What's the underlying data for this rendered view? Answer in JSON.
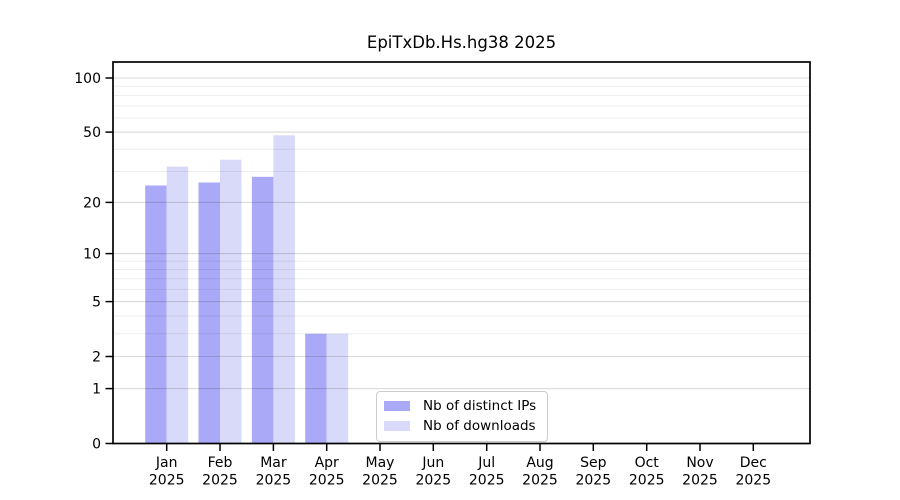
{
  "figure": {
    "background": "#ffffff",
    "text_color": "#000000",
    "spine_color": "#000000",
    "major_grid_color": "#d9d9d9",
    "minor_grid_color": "#ededed"
  },
  "legend": {
    "items": [
      {
        "label": "Nb of distinct IPs",
        "color": "#a9a9f7"
      },
      {
        "label": "Nb of downloads",
        "color": "#d9d9f9"
      }
    ]
  },
  "chart_data": {
    "type": "bar",
    "title": "EpiTxDb.Hs.hg38 2025",
    "x_year": "2025",
    "categories": [
      "Jan",
      "Feb",
      "Mar",
      "Apr",
      "May",
      "Jun",
      "Jul",
      "Aug",
      "Sep",
      "Oct",
      "Nov",
      "Dec"
    ],
    "series": [
      {
        "key": "distinct-ips",
        "name": "Nb of distinct IPs",
        "color": "#a9a9f7",
        "values": [
          25,
          26,
          28,
          3,
          0,
          0,
          0,
          0,
          0,
          0,
          0,
          0
        ]
      },
      {
        "key": "downloads",
        "name": "Nb of downloads",
        "color": "#d9d9f9",
        "values": [
          32,
          35,
          48,
          3,
          0,
          0,
          0,
          0,
          0,
          0,
          0,
          0
        ]
      }
    ],
    "yscale": "log1p",
    "yticks": [
      100,
      50,
      20,
      10,
      5,
      2,
      1,
      0
    ],
    "yticks_minor": [
      90,
      80,
      70,
      60,
      40,
      30,
      9,
      8,
      7,
      6,
      4,
      3
    ],
    "ylim": [
      0,
      120
    ],
    "grid": true,
    "legend_position": "lower-center",
    "xlabel": "",
    "ylabel": ""
  }
}
